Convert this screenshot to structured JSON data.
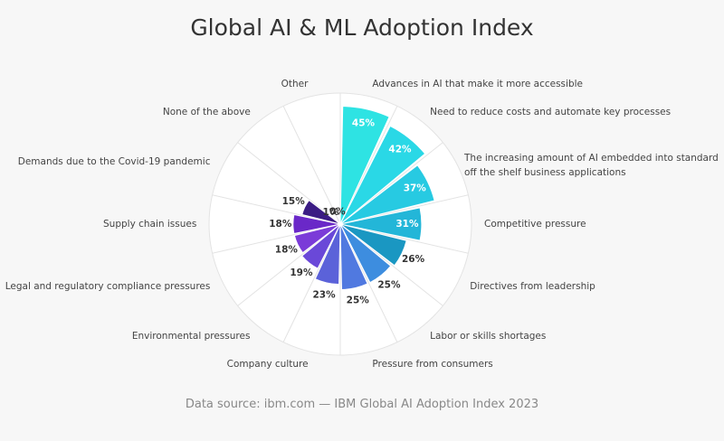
{
  "chart_data": {
    "type": "polar",
    "title": "Global AI & ML Adoption Index",
    "source": "Data source: ibm.com — IBM Global AI Adoption Index 2023",
    "categories": [
      "Advances in AI that make it more accessible",
      "Need to reduce costs and automate key processes",
      "The increasing amount of AI embedded into standard off the shelf business applications",
      "Competitive pressure",
      "Directives from leadership",
      "Labor or skills shortages",
      "Pressure from consumers",
      "Company culture",
      "Environmental pressures",
      "Legal and regulatory compliance pressures",
      "Supply chain issues",
      "Demands due to the Covid-19 pandemic",
      "None of the above",
      "Other"
    ],
    "values": [
      45,
      42,
      37,
      31,
      26,
      25,
      25,
      23,
      19,
      18,
      18,
      15,
      1,
      0
    ],
    "value_labels": [
      "45%",
      "42%",
      "37%",
      "31%",
      "26%",
      "25%",
      "25%",
      "23%",
      "19%",
      "18%",
      "18%",
      "15%",
      "1%",
      "0%"
    ],
    "colors": [
      "#2ee3e3",
      "#2ad8e6",
      "#27cae2",
      "#23b6d8",
      "#1a97c2",
      "#3d8ddf",
      "#5079e0",
      "#5b62d9",
      "#6a48d8",
      "#7b3bd8",
      "#6a28c8",
      "#3b1c84",
      "#2a1468",
      "#1e0f50"
    ],
    "ylim": [
      0,
      50
    ],
    "yticks": [
      0,
      10,
      20,
      30,
      40,
      50
    ],
    "grid": true
  }
}
